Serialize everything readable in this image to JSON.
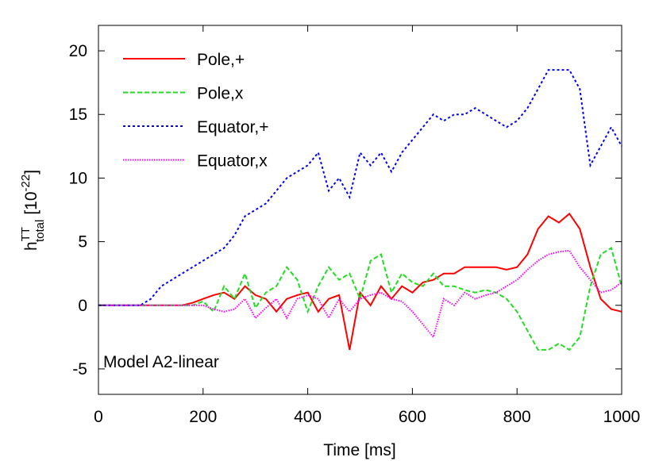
{
  "chart_data": {
    "type": "line",
    "xlabel": "Time [ms]",
    "ylabel": {
      "text": "h",
      "sup": "TT",
      "sub": "total",
      "unit": "[10",
      "unit_sup": "-22",
      "unit_end": "]"
    },
    "annotation": "Model A2-linear",
    "legend": "upper left",
    "xlim": [
      0,
      1000
    ],
    "xticks": [
      0,
      200,
      400,
      600,
      800,
      1000
    ],
    "ylim": [
      -7,
      22
    ],
    "yticks": [
      -5,
      0,
      5,
      10,
      15,
      20
    ],
    "x": [
      0,
      20,
      40,
      60,
      80,
      100,
      120,
      140,
      160,
      180,
      200,
      220,
      240,
      260,
      280,
      300,
      320,
      340,
      360,
      380,
      400,
      420,
      440,
      460,
      480,
      500,
      520,
      540,
      560,
      580,
      600,
      620,
      640,
      660,
      680,
      700,
      720,
      740,
      760,
      780,
      800,
      820,
      840,
      860,
      880,
      900,
      920,
      940,
      960,
      980,
      1000
    ],
    "series": [
      {
        "name": "Pole,+",
        "color": "#ff0000",
        "dash": "none",
        "values": [
          0,
          0,
          0,
          0,
          0,
          0,
          0,
          0,
          0,
          0.2,
          0.5,
          0.8,
          1,
          0.5,
          1.5,
          0.8,
          0.5,
          -0.5,
          0.5,
          0.8,
          1,
          -0.5,
          0.5,
          0.8,
          -3.5,
          1,
          0,
          1.5,
          0.5,
          1.5,
          1,
          1.8,
          2,
          2.5,
          2.5,
          3,
          3,
          3,
          3,
          2.8,
          3,
          4,
          6,
          7,
          6.5,
          7.2,
          6,
          3,
          0.5,
          -0.3,
          -0.5
        ]
      },
      {
        "name": "Pole,x",
        "color": "#22dd22",
        "dash": "6 3",
        "values": [
          0,
          0,
          0,
          0,
          0,
          0,
          0,
          0,
          0,
          0,
          0.3,
          -0.5,
          1.5,
          0.5,
          2.5,
          -0.2,
          1,
          1.5,
          3,
          2,
          -0.5,
          1.5,
          3,
          2,
          2.5,
          0.5,
          3.5,
          4,
          1,
          2.5,
          1.8,
          1.5,
          2.5,
          1.5,
          1.5,
          1.2,
          1,
          1.2,
          1,
          0.5,
          -0.5,
          -2,
          -3.5,
          -3.5,
          -3,
          -3.5,
          -2.5,
          1.5,
          4,
          4.5,
          1.5
        ]
      },
      {
        "name": "Equator,+",
        "color": "#0000ff",
        "dash": "3 3",
        "values": [
          0,
          0,
          0,
          0,
          0,
          0.5,
          1.5,
          2,
          2.5,
          3,
          3.5,
          4,
          4.5,
          5.5,
          7,
          7.5,
          8,
          9,
          10,
          10.5,
          11,
          12,
          9,
          10,
          8.5,
          12,
          11,
          12,
          10.5,
          12,
          13,
          14,
          15,
          14.5,
          15,
          15,
          15.5,
          15,
          14.5,
          14,
          14.5,
          15.5,
          17,
          18.5,
          18.5,
          18.5,
          17,
          11,
          12.5,
          14,
          12.5
        ]
      },
      {
        "name": "Equator,x",
        "color": "#ff00ff",
        "dash": "1.5 1.5",
        "values": [
          0,
          0,
          0,
          0,
          0,
          0,
          0,
          0,
          0,
          0,
          0,
          -0.3,
          -0.5,
          -0.3,
          0.5,
          -1,
          -0.2,
          0.5,
          -1,
          0.5,
          0.8,
          0.5,
          -1,
          0.5,
          -0.5,
          0.5,
          0.8,
          1,
          0.5,
          0.3,
          -0.5,
          -1.5,
          -2.5,
          0.5,
          0,
          1,
          0.5,
          0.8,
          1,
          1.5,
          2,
          2.8,
          3.5,
          4,
          4.2,
          4.3,
          3,
          2,
          1,
          1.2,
          1.8
        ]
      }
    ]
  }
}
